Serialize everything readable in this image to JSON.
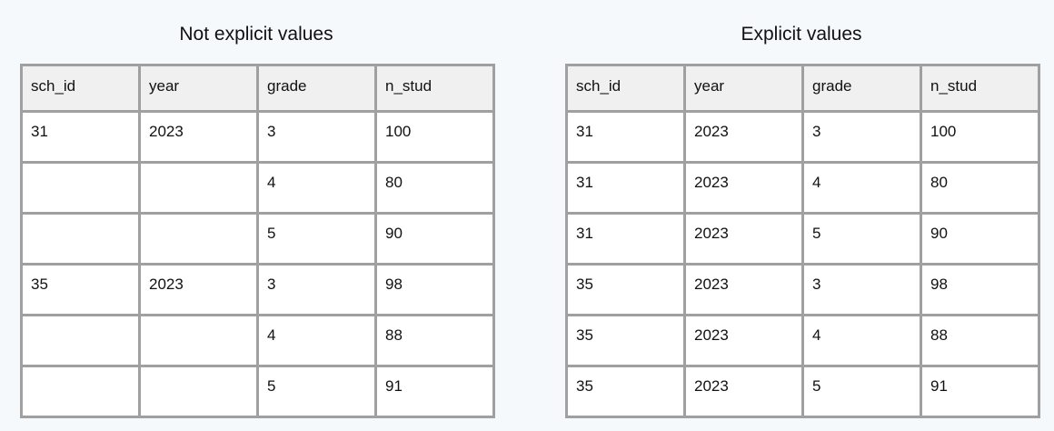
{
  "tables": [
    {
      "title": "Not explicit values",
      "columns": [
        "sch_id",
        "year",
        "grade",
        "n_stud"
      ],
      "rows": [
        [
          "31",
          "2023",
          "3",
          "100"
        ],
        [
          "",
          "",
          "4",
          "80"
        ],
        [
          "",
          "",
          "5",
          "90"
        ],
        [
          "35",
          "2023",
          "3",
          "98"
        ],
        [
          "",
          "",
          "4",
          "88"
        ],
        [
          "",
          "",
          "5",
          "91"
        ]
      ]
    },
    {
      "title": "Explicit values",
      "columns": [
        "sch_id",
        "year",
        "grade",
        "n_stud"
      ],
      "rows": [
        [
          "31",
          "2023",
          "3",
          "100"
        ],
        [
          "31",
          "2023",
          "4",
          "80"
        ],
        [
          "31",
          "2023",
          "5",
          "90"
        ],
        [
          "35",
          "2023",
          "3",
          "98"
        ],
        [
          "35",
          "2023",
          "4",
          "88"
        ],
        [
          "35",
          "2023",
          "5",
          "91"
        ]
      ]
    }
  ]
}
